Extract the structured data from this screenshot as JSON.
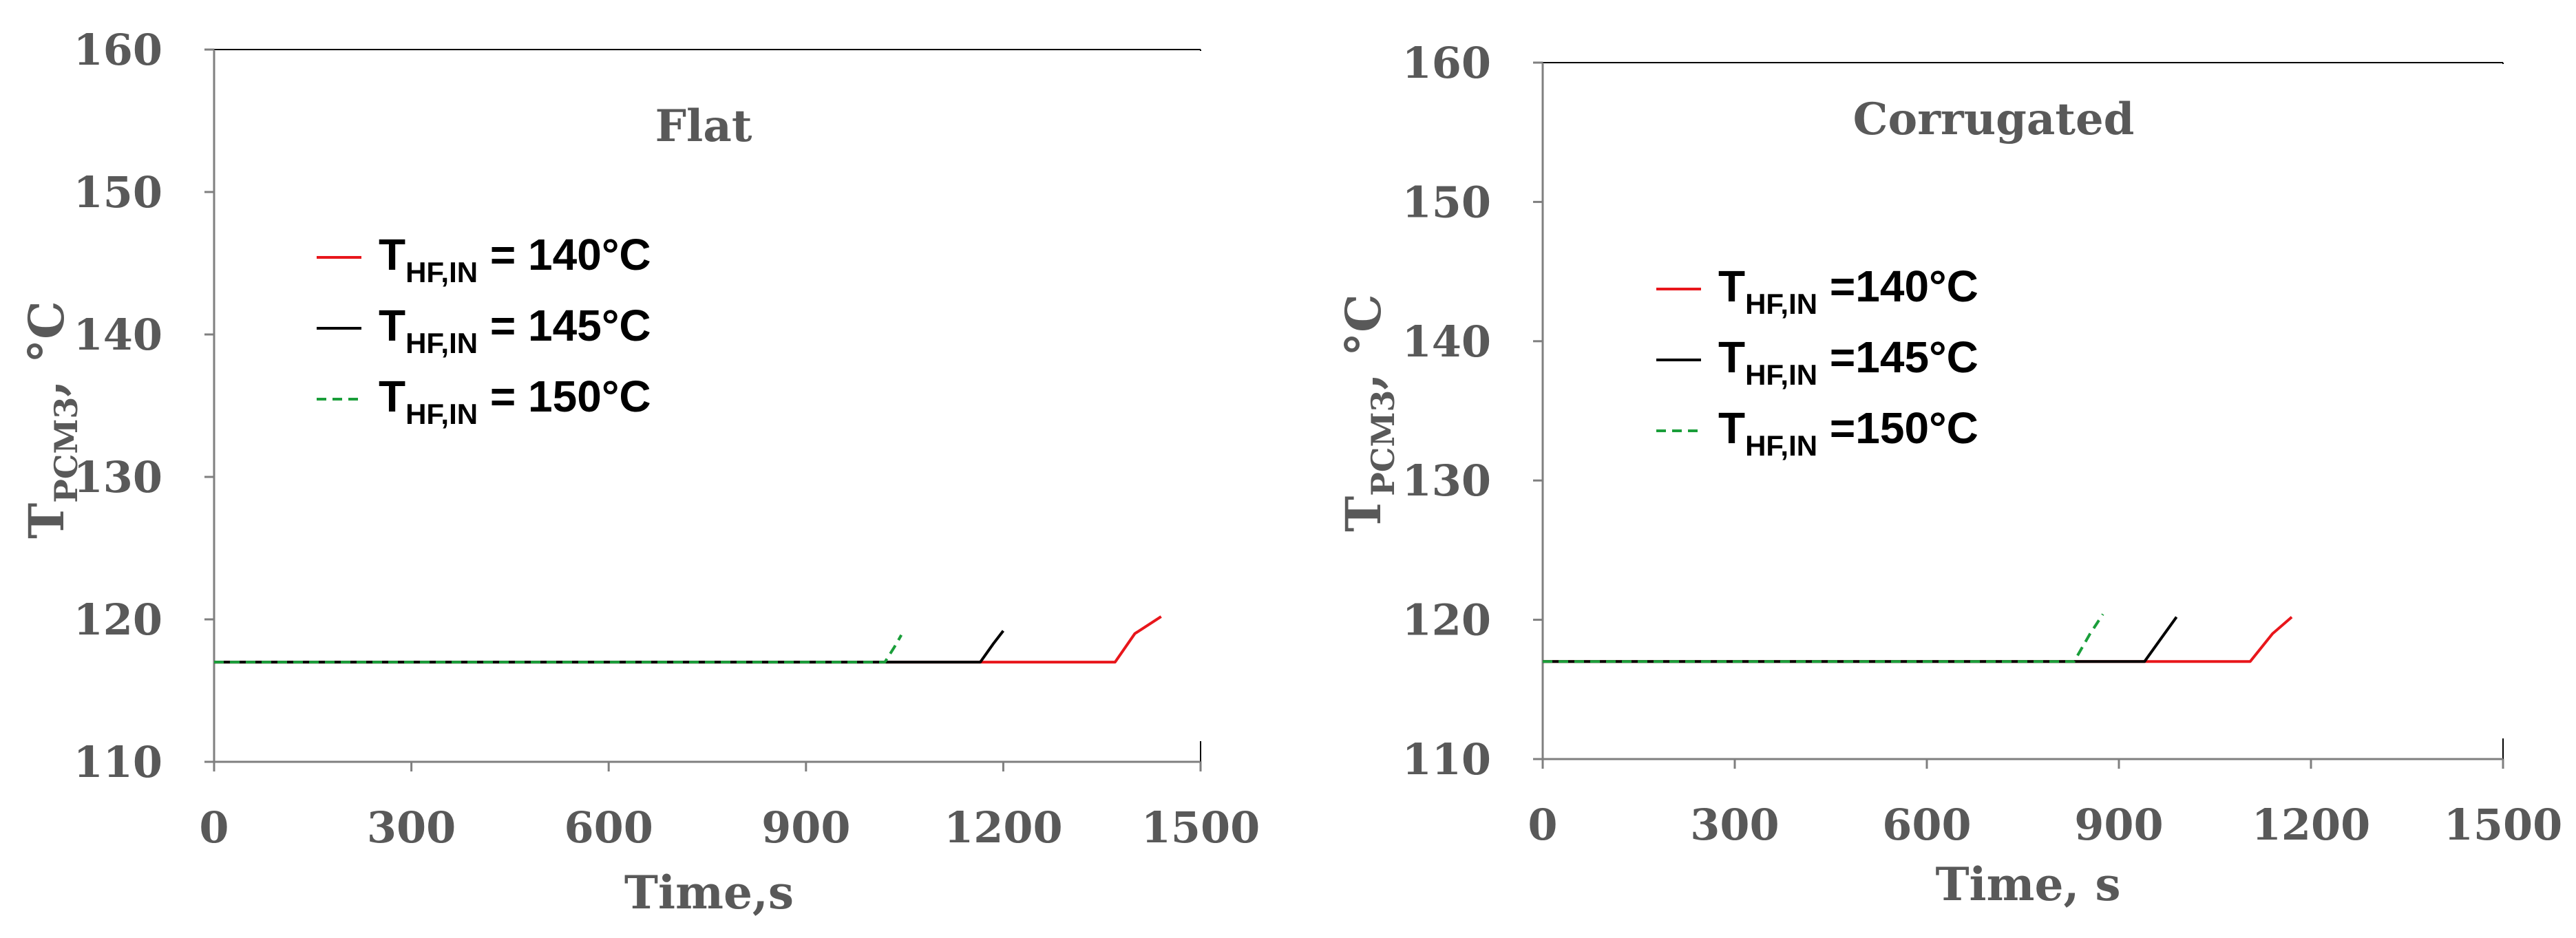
{
  "chart_data": [
    {
      "type": "line",
      "title": "Flat",
      "xlabel": "Time,s",
      "ylabel_main": "T",
      "ylabel_sub": "PCM3",
      "ylabel_suffix": ", °C",
      "xlim": [
        0,
        1500
      ],
      "ylim": [
        110,
        160
      ],
      "xticks": [
        "0",
        "300",
        "600",
        "900",
        "1200",
        "1500"
      ],
      "yticks": [
        "110",
        "120",
        "130",
        "140",
        "150",
        "160"
      ],
      "legend_position": "upper-left",
      "series": [
        {
          "legend_main": "T",
          "legend_sub": "HF,IN",
          "legend_suffix": " = 140°C",
          "color": "#e8161b",
          "dash": "solid",
          "x": [
            0,
            1370,
            1400,
            1440
          ],
          "y": [
            117,
            117,
            119,
            120.2
          ]
        },
        {
          "legend_main": "T",
          "legend_sub": "HF,IN",
          "legend_suffix": " = 145°C",
          "color": "#000000",
          "dash": "solid",
          "x": [
            0,
            1165,
            1185,
            1200
          ],
          "y": [
            117,
            117,
            118.3,
            119.2
          ]
        },
        {
          "legend_main": "T",
          "legend_sub": "HF,IN",
          "legend_suffix": " = 150°C",
          "color": "#1a9e3a",
          "dash": "dashed",
          "x": [
            0,
            1020,
            1035,
            1045
          ],
          "y": [
            117,
            117,
            118.1,
            118.9
          ]
        }
      ]
    },
    {
      "type": "line",
      "title": "Corrugated",
      "xlabel": "Time, s",
      "ylabel_main": "T",
      "ylabel_sub": "PCM3",
      "ylabel_suffix": ", °C",
      "xlim": [
        0,
        1500
      ],
      "ylim": [
        110,
        160
      ],
      "xticks": [
        "0",
        "300",
        "600",
        "900",
        "1200",
        "1500"
      ],
      "yticks": [
        "110",
        "120",
        "130",
        "140",
        "150",
        "160"
      ],
      "legend_position": "middle-left",
      "series": [
        {
          "legend_main": "T",
          "legend_sub": "HF,IN",
          "legend_suffix": " =140°C",
          "color": "#e8161b",
          "dash": "solid",
          "x": [
            0,
            1105,
            1140,
            1170
          ],
          "y": [
            117,
            117,
            119,
            120.2
          ]
        },
        {
          "legend_main": "T",
          "legend_sub": "HF,IN",
          "legend_suffix": " =145°C",
          "color": "#000000",
          "dash": "solid",
          "x": [
            0,
            940,
            965,
            990
          ],
          "y": [
            117,
            117,
            118.6,
            120.2
          ]
        },
        {
          "legend_main": "T",
          "legend_sub": "HF,IN",
          "legend_suffix": " =150°C",
          "color": "#1a9e3a",
          "dash": "dashed",
          "x": [
            0,
            830,
            855,
            875
          ],
          "y": [
            117,
            117,
            119,
            120.4
          ]
        }
      ]
    }
  ]
}
